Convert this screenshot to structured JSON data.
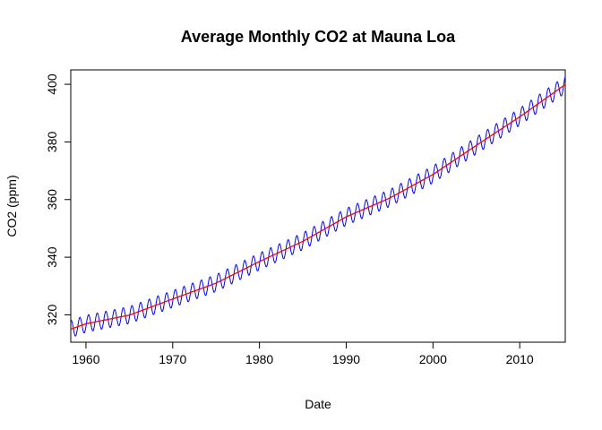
{
  "chart_data": {
    "type": "line",
    "title": "Average Monthly CO2 at Mauna Loa",
    "xlabel": "Date",
    "ylabel": "CO2 (ppm)",
    "xlim": [
      1958.25,
      2015.25
    ],
    "ylim": [
      310.5,
      405
    ],
    "x_ticks": [
      "1960",
      "1970",
      "1980",
      "1990",
      "2000",
      "2010"
    ],
    "y_ticks": [
      "320",
      "340",
      "360",
      "380",
      "400"
    ],
    "grid": false,
    "legend": "none",
    "series": [
      {
        "key": "monthly",
        "color": "#0000ff",
        "seasonal_amplitude_ppm": 3.0,
        "monthly_start": 1958.25,
        "monthly_end": 2015.25
      },
      {
        "key": "trend",
        "color": "#ff0000",
        "x": [
          1958.25,
          1960,
          1965,
          1970,
          1975,
          1980,
          1985,
          1990,
          1995,
          2000,
          2005,
          2010,
          2015.25
        ],
        "values": [
          315.0,
          316.9,
          319.9,
          325.5,
          331.0,
          338.5,
          345.5,
          354.0,
          360.5,
          368.7,
          378.8,
          388.7,
          399.9
        ]
      }
    ]
  }
}
